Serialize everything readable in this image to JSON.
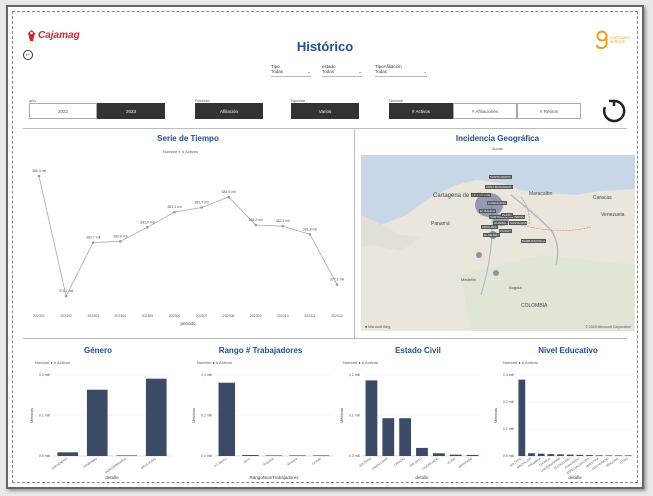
{
  "header": {
    "logo_text": "Cajamag",
    "title": "Histórico",
    "brand_right_lines": [
      "CUSTOMER",
      "SERVICE"
    ]
  },
  "filters": [
    {
      "label": "Tipo",
      "value": "Todas"
    },
    {
      "label": "estado",
      "value": "Todas"
    },
    {
      "label": "TipoAfiliación",
      "value": "Todas"
    }
  ],
  "slicers": {
    "year_label": "año",
    "years": [
      {
        "label": "2022",
        "selected": false
      },
      {
        "label": "2023",
        "selected": true
      }
    ],
    "proceso_label": "Proceso",
    "proceso_value": "Afiliación",
    "nombre_label": "Nombre",
    "nombre_value": "Varios",
    "nombre2_label": "Nombre",
    "metrics": [
      {
        "label": "# Activos",
        "selected": true
      },
      {
        "label": "# Afiliaciones",
        "selected": false
      },
      {
        "label": "# Retiros",
        "selected": false
      }
    ]
  },
  "colors": {
    "bar": "#3b4a66",
    "title": "#1f4e8c",
    "line": "#aaaaaa"
  },
  "serie_tiempo": {
    "title": "Serie de Tiempo",
    "legend_name": "Nombre",
    "legend_item": "# Activos",
    "xlabel": "periodo",
    "chart_data": {
      "type": "line",
      "categories": [
        "202301",
        "202302",
        "202303",
        "202304",
        "202305",
        "202306",
        "202307",
        "202308",
        "202309",
        "202310",
        "202311",
        "202312"
      ],
      "values": [
        386.4,
        376.1,
        380.7,
        380.8,
        382.0,
        383.3,
        383.7,
        384.6,
        382.2,
        382.1,
        381.4,
        377.1
      ],
      "labels": [
        "386,4 mil",
        "376,1 mil",
        "380,7 mil",
        "380,8 mil",
        "382,0 mil",
        "383,3 mil",
        "383,7 mil",
        "384,6 mil",
        "382,2 mil",
        "382,1 mil",
        "381,4 mil",
        "377,1 mil"
      ]
    }
  },
  "geo": {
    "title": "Incidencia Geográfica",
    "subtitle": "Zonas",
    "map_labels": [
      "SANTA MARTA",
      "ZONA BANANERA",
      "ARACATACA",
      "FUNDACION",
      "EL BANCO",
      "CARTAGENA DE INDIAS",
      "PLATO",
      "GUAMAL",
      "SANTA ANA",
      "ARIGUANI",
      "PIVIJAY",
      "EL RETEN",
      "BARRANQUILLA",
      "MEDELLIN",
      "BOGOTA",
      "BUCARAMANGA",
      "CUCUTA",
      "CARACAS",
      "VENEZUELA"
    ],
    "places": [
      "Cartagena de Indias",
      "Maracaibo",
      "Caracas",
      "Panamá",
      "Venezuela",
      "COLOMBIA",
      "Medellín",
      "Bogotá"
    ],
    "attribution": "© 2023 Microsoft Corporation"
  },
  "genero": {
    "title": "Género",
    "legend_name": "Nombre",
    "legend_item": "# Activos",
    "xlabel": "detalle",
    "ylabel": "Métricas",
    "chart_data": {
      "type": "bar",
      "categories": [
        "SIN GENERO",
        "FEMENINO",
        "INDETERMINADO",
        "MASCULINO"
      ],
      "values": [
        0.01,
        0.18,
        0.0,
        0.21
      ],
      "yticks": [
        "0,2 mill",
        "0,1 mill",
        "0,0 mill"
      ]
    }
  },
  "rango": {
    "title": "Rango # Trabajadores",
    "legend_name": "Nombre",
    "legend_item": "# Activos",
    "xlabel": "RangoNumTrabajadores",
    "ylabel": "Métricas",
    "chart_data": {
      "type": "bar",
      "categories": [
        "0-5 Básico",
        "Micro",
        "Pequeña",
        "Mediana",
        "Grande"
      ],
      "values": [
        0.38,
        0.005,
        0.002,
        0.001,
        0.001
      ],
      "yticks": [
        "0,4 mill",
        "0,2 mill",
        "0,0 mill"
      ]
    }
  },
  "civil": {
    "title": "Estado Civil",
    "legend_name": "Nombre",
    "legend_item": "# Activos",
    "xlabel": "detalle",
    "ylabel": "Métricas",
    "chart_data": {
      "type": "bar",
      "categories": [
        "SOLTERO",
        "UNION LIBRE",
        "CASADO",
        "SIN DATO",
        "DIVORCIADO",
        "VIUDO",
        "SEPARADO"
      ],
      "values": [
        0.28,
        0.14,
        0.14,
        0.03,
        0.01,
        0.005,
        0.004
      ],
      "yticks": [
        "0,2 mill",
        "0,1 mill",
        "0,0 mill"
      ]
    }
  },
  "educativo": {
    "title": "Nivel Educativo",
    "legend_name": "Nombre",
    "legend_item": "# Activos",
    "xlabel": "detalle",
    "ylabel": "Métricas",
    "chart_data": {
      "type": "bar",
      "categories": [
        "SIN DATO",
        "BACHILLER",
        "PRIMARIA",
        "TECNICO",
        "UNIVERSITARIO",
        "TECNOLOGO",
        "POSGRADO",
        "ESPECIALIZACION",
        "MAESTRIA",
        "DOCTORADO",
        "NINGUNO",
        "OTRO"
      ],
      "values": [
        0.33,
        0.012,
        0.01,
        0.008,
        0.007,
        0.006,
        0.005,
        0.004,
        0.003,
        0.002,
        0.001,
        0.001
      ],
      "yticks": [
        "0,3 mill",
        "0,2 mill",
        "0,1 mill",
        "0,0 mill"
      ]
    }
  }
}
